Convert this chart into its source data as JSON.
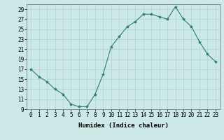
{
  "x": [
    0,
    1,
    2,
    3,
    4,
    5,
    6,
    7,
    8,
    9,
    10,
    11,
    12,
    13,
    14,
    15,
    16,
    17,
    18,
    19,
    20,
    21,
    22,
    23
  ],
  "y": [
    17,
    15.5,
    14.5,
    13,
    12,
    10,
    9.5,
    9.5,
    12,
    16,
    21.5,
    23.5,
    25.5,
    26.5,
    28,
    28,
    27.5,
    27,
    29.5,
    27,
    25.5,
    22.5,
    20,
    18.5
  ],
  "line_color": "#2e7d6e",
  "marker": "*",
  "marker_size": 3,
  "bg_color": "#cce9e7",
  "grid_color": "#aad4d0",
  "xlabel": "Humidex (Indice chaleur)",
  "xlim": [
    -0.5,
    23.5
  ],
  "ylim": [
    9,
    30
  ],
  "yticks": [
    9,
    11,
    13,
    15,
    17,
    19,
    21,
    23,
    25,
    27,
    29
  ],
  "xticks": [
    0,
    1,
    2,
    3,
    4,
    5,
    6,
    7,
    8,
    9,
    10,
    11,
    12,
    13,
    14,
    15,
    16,
    17,
    18,
    19,
    20,
    21,
    22,
    23
  ],
  "tick_fontsize": 5.5,
  "label_fontsize": 6.5
}
